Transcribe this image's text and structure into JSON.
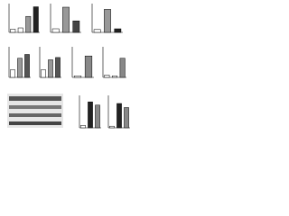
{
  "chart_data": [
    {
      "type": "bar",
      "values": [
        0.5,
        0.7,
        2.5,
        4
      ],
      "colors": [
        "#ffffff",
        "#ffffff",
        "#999999",
        "#222222"
      ],
      "ylim": [
        0,
        4.5
      ]
    },
    {
      "type": "bar",
      "values": [
        0.5,
        3.5,
        1.6
      ],
      "colors": [
        "#ffffff",
        "#999999",
        "#444444"
      ],
      "ylim": [
        0,
        4
      ]
    },
    {
      "type": "bar",
      "values": [
        0.4,
        3.2,
        0.5
      ],
      "colors": [
        "#ffffff",
        "#999999",
        "#222222"
      ],
      "ylim": [
        0,
        4
      ]
    },
    {
      "type": "bar",
      "values": [
        1,
        2.5,
        3
      ],
      "colors": [
        "#ffffff",
        "#999999",
        "#555555"
      ],
      "ylim": [
        0,
        4
      ]
    },
    {
      "type": "bar",
      "values": [
        1,
        2.3,
        2.6
      ],
      "colors": [
        "#ffffff",
        "#999999",
        "#555555"
      ],
      "ylim": [
        0,
        4
      ]
    },
    {
      "type": "bar",
      "values": [
        0.2,
        2.8
      ],
      "colors": [
        "#ffffff",
        "#888888"
      ],
      "ylim": [
        0,
        4
      ]
    },
    {
      "type": "bar",
      "values": [
        0.3,
        0.2,
        2.5
      ],
      "colors": [
        "#ffffff",
        "#ffffff",
        "#888888"
      ],
      "ylim": [
        0,
        4
      ]
    },
    {
      "type": "bar",
      "values": [
        0.3,
        3.2,
        2.8
      ],
      "colors": [
        "#ffffff",
        "#222222",
        "#888888"
      ],
      "ylim": [
        0,
        4
      ]
    },
    {
      "type": "bar",
      "values": [
        0.2,
        3,
        2.5
      ],
      "colors": [
        "#ffffff",
        "#222222",
        "#888888"
      ],
      "ylim": [
        0,
        4
      ]
    }
  ]
}
